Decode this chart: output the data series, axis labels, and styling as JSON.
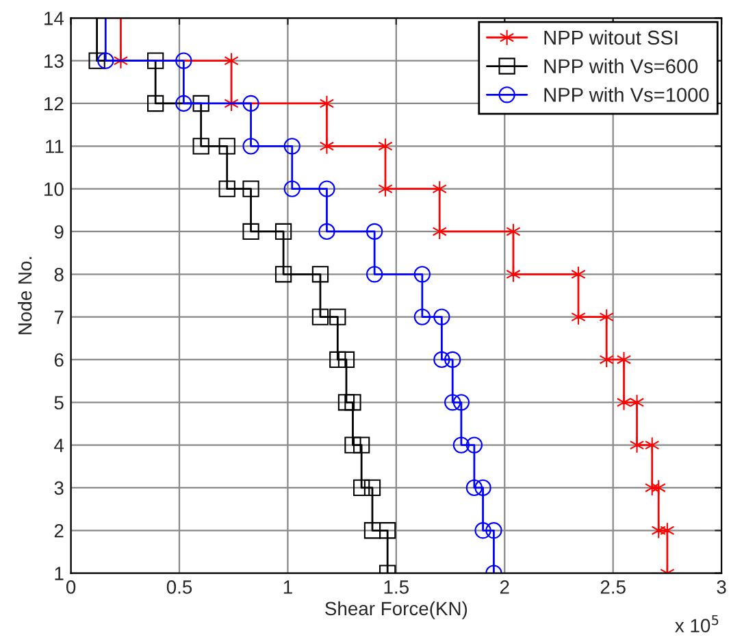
{
  "chart_data": {
    "type": "line",
    "xlabel": "Shear Force(KN)",
    "ylabel": "Node No.",
    "xlim": [
      0,
      3
    ],
    "xticks": [
      0,
      0.5,
      1,
      1.5,
      2,
      2.5,
      3
    ],
    "ylim": [
      1,
      14
    ],
    "yticks": [
      1,
      2,
      3,
      4,
      5,
      6,
      7,
      8,
      9,
      10,
      11,
      12,
      13,
      14
    ],
    "grid": true,
    "legend": "top right",
    "line_style": "solid",
    "annotations": [
      "x 10$^{5}$"
    ],
    "series": [
      {
        "name": "NPP witout SSI",
        "color": "#ff0000",
        "marker": "cross",
        "x": [
          0.23,
          0.23,
          0.74,
          0.74,
          1.18,
          1.18,
          1.45,
          1.45,
          1.7,
          1.7,
          2.04,
          2.04,
          2.34,
          2.34,
          2.47,
          2.47,
          2.55,
          2.55,
          2.61,
          2.61,
          2.68,
          2.68,
          2.71,
          2.71,
          2.75,
          2.75
        ],
        "values": [
          14,
          13,
          13,
          12,
          12,
          11,
          11,
          10,
          10,
          9,
          9,
          8,
          8,
          7,
          7,
          6,
          6,
          5,
          5,
          4,
          4,
          3,
          3,
          2,
          2,
          1
        ]
      },
      {
        "name": "NPP with Vs=600",
        "color": "#000000",
        "marker": "square",
        "x": [
          0.12,
          0.12,
          0.39,
          0.39,
          0.6,
          0.6,
          0.72,
          0.72,
          0.83,
          0.83,
          0.98,
          0.98,
          1.15,
          1.15,
          1.23,
          1.23,
          1.27,
          1.27,
          1.3,
          1.3,
          1.34,
          1.34,
          1.39,
          1.39,
          1.46,
          1.46
        ],
        "values": [
          14,
          13,
          13,
          12,
          12,
          11,
          11,
          10,
          10,
          9,
          9,
          8,
          8,
          7,
          7,
          6,
          6,
          5,
          5,
          4,
          4,
          3,
          3,
          2,
          2,
          1
        ]
      },
      {
        "name": "NPP with Vs=1000",
        "color": "#0000ff",
        "marker": "circle",
        "x": [
          0.16,
          0.16,
          0.52,
          0.52,
          0.83,
          0.83,
          1.02,
          1.02,
          1.18,
          1.18,
          1.4,
          1.4,
          1.62,
          1.62,
          1.71,
          1.71,
          1.76,
          1.76,
          1.8,
          1.8,
          1.86,
          1.86,
          1.9,
          1.9,
          1.95,
          1.95
        ],
        "values": [
          14,
          13,
          13,
          12,
          12,
          11,
          11,
          10,
          10,
          9,
          9,
          8,
          8,
          7,
          7,
          6,
          6,
          5,
          5,
          4,
          4,
          3,
          3,
          2,
          2,
          1
        ]
      }
    ]
  }
}
